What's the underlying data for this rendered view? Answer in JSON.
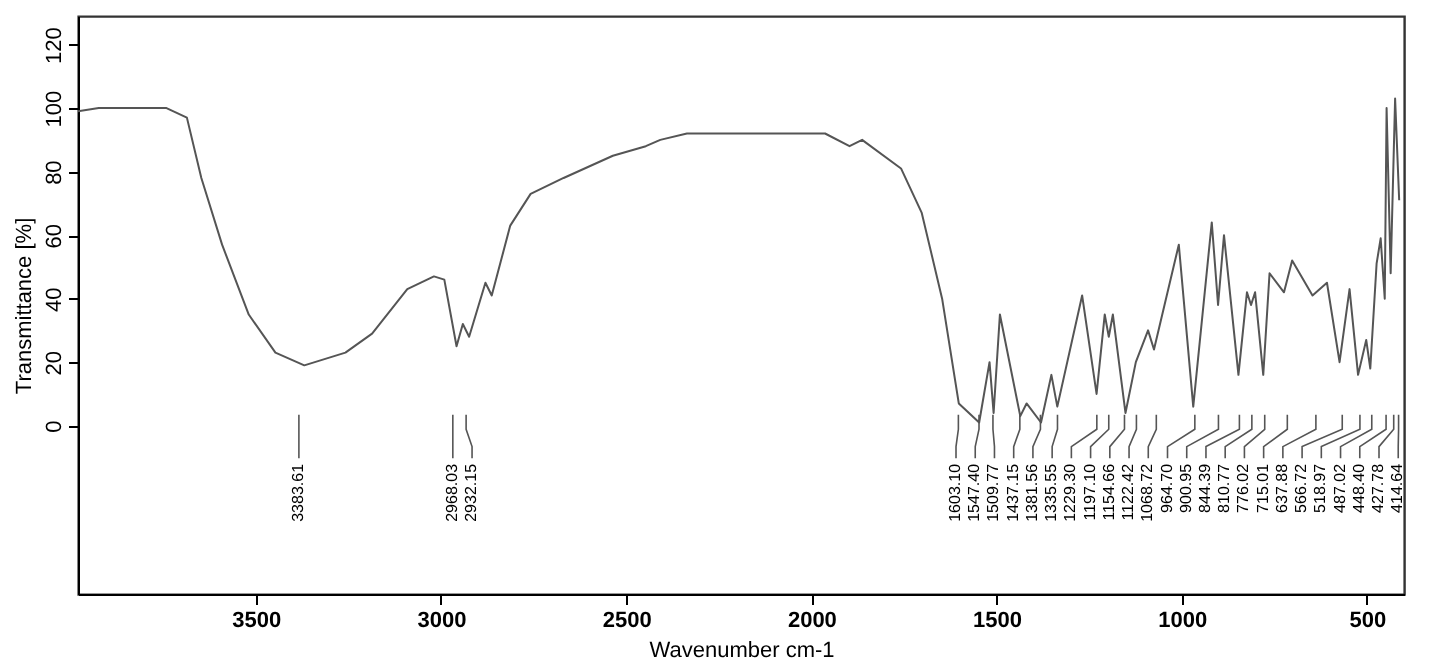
{
  "chart_data": {
    "type": "line",
    "xlabel": "Wavenumber cm-1",
    "ylabel": "Transmittance [%]",
    "color": "#555555",
    "xlim": [
      3980,
      400
    ],
    "ylim": [
      -53,
      129
    ],
    "xticks": [
      3500,
      3000,
      2500,
      2000,
      1500,
      1000,
      500
    ],
    "yticks": [
      0,
      20,
      40,
      60,
      80,
      100,
      120
    ],
    "x": [
      3980,
      3924,
      3741,
      3686,
      3647,
      3591,
      3519,
      3447,
      3369,
      3258,
      3186,
      3091,
      3019,
      2991,
      2958,
      2941,
      2924,
      2880,
      2863,
      2813,
      2758,
      2669,
      2536,
      2447,
      2408,
      2336,
      2241,
      2113,
      1963,
      1897,
      1863,
      1758,
      1702,
      1647,
      1602,
      1547,
      1519,
      1508,
      1491,
      1436,
      1419,
      1380,
      1352,
      1336,
      1269,
      1230,
      1208,
      1197,
      1186,
      1152,
      1124,
      1091,
      1075,
      1008,
      969,
      919,
      902,
      886,
      847,
      824,
      813,
      802,
      780,
      763,
      724,
      702,
      647,
      608,
      574,
      547,
      524,
      502,
      491,
      474,
      463,
      452,
      447,
      436,
      424,
      413
    ],
    "values": [
      99,
      100,
      100,
      97,
      78,
      57,
      35,
      23,
      19,
      23,
      29,
      43,
      47,
      46,
      25,
      32,
      28,
      45,
      41,
      63,
      73,
      78,
      85,
      88,
      90,
      92,
      92,
      92,
      92,
      88,
      90,
      81,
      67,
      40,
      7,
      1,
      20,
      4,
      35,
      3,
      7,
      1,
      16,
      6,
      41,
      10,
      35,
      28,
      35,
      4,
      20,
      30,
      24,
      57,
      6,
      64,
      38,
      60,
      16,
      42,
      38,
      42,
      16,
      48,
      42,
      52,
      41,
      45,
      20,
      43,
      16,
      27,
      18,
      51,
      59,
      40,
      100,
      48,
      103,
      71
    ],
    "annotations": [
      {
        "text": "3383.61",
        "x": 3383.61
      },
      {
        "text": "2968.03",
        "x": 2968.03
      },
      {
        "text": "2932.15",
        "x": 2932.15
      },
      {
        "text": "1603.10",
        "x": 1603.1
      },
      {
        "text": "1547.40",
        "x": 1547.4
      },
      {
        "text": "1509.77",
        "x": 1509.77
      },
      {
        "text": "1437.15",
        "x": 1437.15
      },
      {
        "text": "1381.56",
        "x": 1381.56
      },
      {
        "text": "1335.55",
        "x": 1335.55
      },
      {
        "text": "1229.30",
        "x": 1229.3
      },
      {
        "text": "1197.10",
        "x": 1197.1
      },
      {
        "text": "1154.66",
        "x": 1154.66
      },
      {
        "text": "1122.42",
        "x": 1122.42
      },
      {
        "text": "1068.72",
        "x": 1068.72
      },
      {
        "text": "964.70",
        "x": 964.7
      },
      {
        "text": "900.95",
        "x": 900.95
      },
      {
        "text": "844.39",
        "x": 844.39
      },
      {
        "text": "810.77",
        "x": 810.77
      },
      {
        "text": "776.02",
        "x": 776.02
      },
      {
        "text": "715.01",
        "x": 715.01
      },
      {
        "text": "637.88",
        "x": 637.88
      },
      {
        "text": "566.72",
        "x": 566.72
      },
      {
        "text": "518.97",
        "x": 518.97
      },
      {
        "text": "487.02",
        "x": 487.02
      },
      {
        "text": "448.40",
        "x": 448.4
      },
      {
        "text": "427.78",
        "x": 427.78
      },
      {
        "text": "414.64",
        "x": 414.64
      }
    ]
  }
}
